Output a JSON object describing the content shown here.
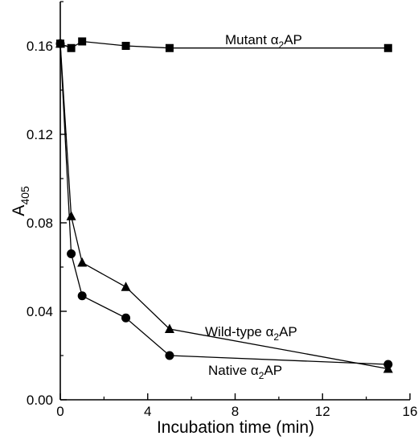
{
  "chart_data": {
    "type": "line",
    "title": "",
    "xlabel": "Incubation time (min)",
    "ylabel": "A",
    "ylabel_subscript": "405",
    "xlim": [
      0,
      16
    ],
    "ylim": [
      0,
      0.18
    ],
    "xticks": [
      0,
      4,
      8,
      12,
      16
    ],
    "xtick_labels": [
      "0",
      "4",
      "8",
      "12",
      "16"
    ],
    "yticks": [
      0,
      0.04,
      0.08,
      0.12,
      0.16
    ],
    "ytick_labels": [
      "0.00",
      "0.04",
      "0.08",
      "0.12",
      "0.16"
    ],
    "grid": false,
    "legend": "none",
    "series": [
      {
        "name": "Mutant α2AP",
        "label_parts": {
          "pre": "Mutant α",
          "sub": "2",
          "post": "AP"
        },
        "marker": "square",
        "x": [
          0,
          0.5,
          1,
          3,
          5,
          15
        ],
        "y": [
          0.161,
          0.159,
          0.162,
          0.16,
          0.159,
          0.159
        ]
      },
      {
        "name": "Wild-type α2AP",
        "label_parts": {
          "pre": "Wild-type α",
          "sub": "2",
          "post": "AP"
        },
        "marker": "triangle",
        "x": [
          0,
          0.5,
          1,
          3,
          5,
          15
        ],
        "y": [
          0.161,
          0.083,
          0.062,
          0.051,
          0.032,
          0.014
        ]
      },
      {
        "name": "Native α2AP",
        "label_parts": {
          "pre": "Native α",
          "sub": "2",
          "post": "AP"
        },
        "marker": "circle",
        "x": [
          0,
          0.5,
          1,
          3,
          5,
          15
        ],
        "y": [
          0.161,
          0.066,
          0.047,
          0.037,
          0.02,
          0.016
        ]
      }
    ]
  }
}
